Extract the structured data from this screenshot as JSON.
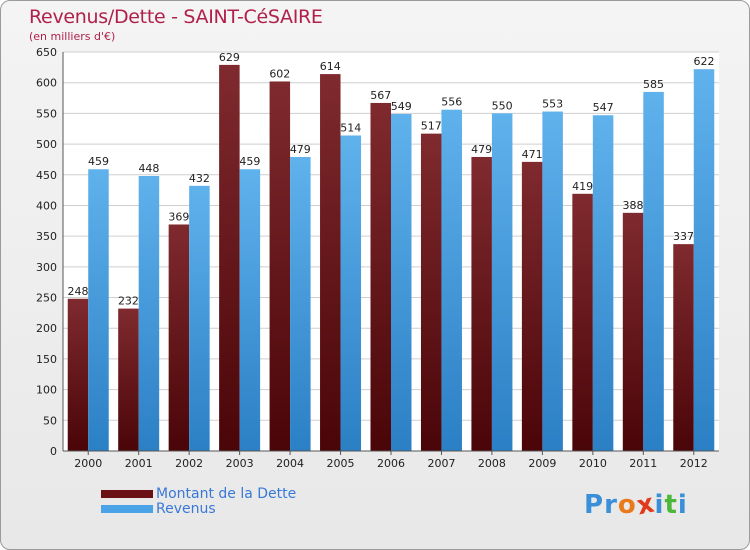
{
  "title": "Revenus/Dette - SAINT-CéSAIRE",
  "subtitle": "(en milliers d'€)",
  "colors": {
    "dette": "#7a1f24",
    "dette_dark": "#4a0a0e",
    "revenus": "#5aaee8",
    "revenus_dark": "#2a7cc0",
    "title": "#b0204a",
    "legend_text": "#3a78d8"
  },
  "chart_data": {
    "type": "bar",
    "title": "Revenus/Dette - SAINT-CéSAIRE",
    "xlabel": "",
    "ylabel": "(en milliers d'€)",
    "ylim": [
      0,
      650
    ],
    "ytick_step": 50,
    "grid": true,
    "legend_position": "bottom-left",
    "categories": [
      "2000",
      "2001",
      "2002",
      "2003",
      "2004",
      "2005",
      "2006",
      "2007",
      "2008",
      "2009",
      "2010",
      "2011",
      "2012"
    ],
    "series": [
      {
        "name": "Montant de la Dette",
        "values": [
          248,
          232,
          369,
          629,
          602,
          614,
          567,
          517,
          479,
          471,
          419,
          388,
          337
        ]
      },
      {
        "name": "Revenus",
        "values": [
          459,
          448,
          432,
          459,
          479,
          514,
          549,
          556,
          550,
          553,
          547,
          585,
          622
        ]
      }
    ]
  },
  "legend": {
    "items": [
      {
        "label": "Montant de la Dette",
        "color": "#6b1015"
      },
      {
        "label": "Revenus",
        "color": "#4aa3e6"
      }
    ]
  },
  "logo": {
    "letters": [
      "P",
      "r",
      "o",
      "x",
      "i",
      "t",
      "i"
    ],
    "letter_colors": [
      "#3a8fd8",
      "#3a8fd8",
      "#e87a1c",
      "#e03a1c",
      "#3a8fd8",
      "#4cb83a",
      "#3a8fd8"
    ]
  }
}
